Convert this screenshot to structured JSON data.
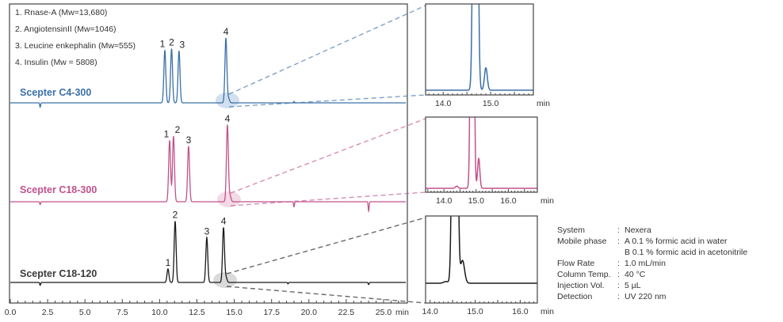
{
  "chart_data": {
    "type": "line",
    "title": "",
    "xlabel": "min",
    "ylabel": "",
    "xlim": [
      0,
      26.5
    ],
    "xticks": [
      "0.0",
      "2.5",
      "5.0",
      "7.5",
      "10.0",
      "12.5",
      "15.0",
      "17.5",
      "20.0",
      "22.5",
      "25.0"
    ],
    "xtick_values": [
      0,
      2.5,
      5,
      7.5,
      10,
      12.5,
      15,
      17.5,
      20,
      22.5,
      25
    ],
    "grid": false,
    "legend": {
      "placement": "top-left",
      "items": [
        "1. Rnase-A (Mw=13,680)",
        "2. AngiotensinII (Mw=1046)",
        "3. Leucine enkephalin (Mw=555)",
        "4. Insulin (Mw = 5808)"
      ]
    },
    "series": [
      {
        "name": "Scepter C4-300",
        "color": "#3b70a8",
        "highlight": "#c9d9ec",
        "peaks": [
          {
            "label": "1",
            "rt": 10.35,
            "height": 74
          },
          {
            "label": "2",
            "rt": 10.8,
            "height": 76
          },
          {
            "label": "3",
            "rt": 11.3,
            "height": 73
          },
          {
            "label": "4",
            "rt": 14.44,
            "height": 91
          },
          {
            "label": "",
            "rt": 14.62,
            "height": 6
          }
        ],
        "artifacts": [
          {
            "rt": 2.0,
            "height": -6
          },
          {
            "rt": 19.0,
            "height": 2
          }
        ],
        "inset": {
          "xlim": [
            13.63,
            15.9
          ],
          "ylim": [
            -0.5,
            10
          ],
          "xticks": [
            "14.0",
            "15.0"
          ],
          "xtick_values": [
            14,
            15
          ],
          "peaks": [
            {
              "rt": 14.68,
              "height": 100,
              "sigma": 0.035
            },
            {
              "rt": 14.9,
              "height": 2.6,
              "sigma": 0.03
            }
          ]
        }
      },
      {
        "name": "Scepter C18-300",
        "color": "#c2528c",
        "highlight": "#f1d3e2",
        "peaks": [
          {
            "label": "1",
            "rt": 10.67,
            "height": 86
          },
          {
            "label": "2",
            "rt": 10.93,
            "height": 92
          },
          {
            "label": "3",
            "rt": 11.94,
            "height": 78
          },
          {
            "label": "4",
            "rt": 14.54,
            "height": 108
          },
          {
            "label": "",
            "rt": 14.72,
            "height": 8
          }
        ],
        "artifacts": [
          {
            "rt": 2.0,
            "height": -4
          },
          {
            "rt": 19.0,
            "height": -7
          },
          {
            "rt": 24.0,
            "height": -13
          }
        ],
        "inset": {
          "xlim": [
            13.43,
            16.9
          ],
          "ylim": [
            -0.5,
            10
          ],
          "xticks": [
            "14.0",
            "15.0",
            "16.0"
          ],
          "xtick_values": [
            14,
            15,
            16
          ],
          "peaks": [
            {
              "rt": 14.4,
              "height": 0.3,
              "sigma": 0.04
            },
            {
              "rt": 14.88,
              "height": 100,
              "sigma": 0.04
            },
            {
              "rt": 15.08,
              "height": 4.2,
              "sigma": 0.035
            }
          ]
        }
      },
      {
        "name": "Scepter C18-120",
        "color": "#1a1a1a",
        "highlight": "#d4d4d4",
        "peaks": [
          {
            "label": "1",
            "rt": 10.56,
            "height": 19
          },
          {
            "label": "2",
            "rt": 11.04,
            "height": 86
          },
          {
            "label": "3",
            "rt": 13.16,
            "height": 63
          },
          {
            "label": "4",
            "rt": 14.28,
            "height": 77
          },
          {
            "label": "",
            "rt": 14.45,
            "height": 7
          }
        ],
        "artifacts": [
          {
            "rt": 2.0,
            "height": -4
          },
          {
            "rt": 18.6,
            "height": -2
          },
          {
            "rt": 24.0,
            "height": -3
          }
        ],
        "inset": {
          "xlim": [
            13.9,
            16.38
          ],
          "ylim": [
            -0.5,
            8
          ],
          "xticks": [
            "14.0",
            "15.0",
            "16.0"
          ],
          "xtick_values": [
            14,
            15,
            16
          ],
          "peaks": [
            {
              "rt": 14.35,
              "height": 0.2,
              "sigma": 0.05
            },
            {
              "rt": 14.55,
              "height": 100,
              "sigma": 0.04
            },
            {
              "rt": 14.72,
              "height": 2.7,
              "sigma": 0.045
            }
          ]
        }
      }
    ]
  },
  "conditions": [
    {
      "label": "System",
      "value": "Nexera"
    },
    {
      "label": "Mobile phase",
      "value": "A 0.1 % formic acid in water"
    },
    {
      "label": "",
      "value": "B 0.1 % formic acid in acetonitrile"
    },
    {
      "label": "Flow Rate",
      "value": "1.0 mL/min"
    },
    {
      "label": "Column Temp.",
      "value": "40 °C"
    },
    {
      "label": "Injection Vol.",
      "value": "5 µL"
    },
    {
      "label": "Detection",
      "value": "UV 220 nm"
    }
  ],
  "colon": ":"
}
